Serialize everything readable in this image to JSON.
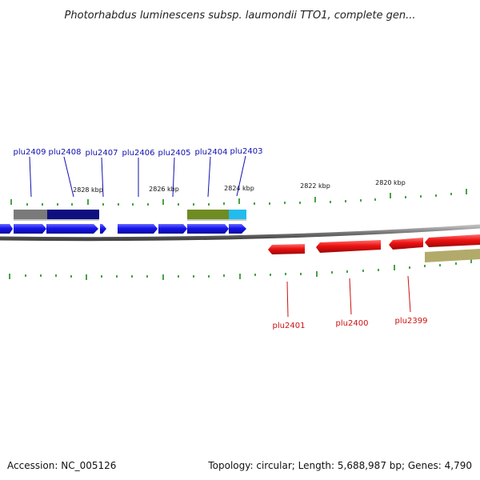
{
  "title": "Photorhabdus luminescens subsp. laumondii TTO1, complete gen...",
  "kbp_labels": [
    "2828 kbp",
    "2826 kbp",
    "2824 kbp",
    "2822 kbp",
    "2820 kbp"
  ],
  "top_genes": [
    "plu2409",
    "plu2408",
    "plu2407",
    "plu2406",
    "plu2405",
    "plu2404",
    "plu2403"
  ],
  "bottom_genes": [
    "plu2401",
    "plu2400",
    "plu2399"
  ],
  "footer": {
    "accession": "Accession: NC_005126",
    "topology": "Topology: circular; Length: 5,688,987 bp; Genes: 4,790"
  },
  "colors": {
    "forward_cds": "#1515ee",
    "reverse_cds": "#ee1111",
    "backbone": "#777777",
    "ticks": "#1a8a1a",
    "top_label": "#1010b0",
    "bottom_label": "#cc1111",
    "feature_gray": "#7a7a7a",
    "feature_navy": "#0f0f80",
    "feature_olive": "#6e8c22",
    "feature_cyan": "#22bbee",
    "feature_khaki": "#b2aa6a"
  }
}
